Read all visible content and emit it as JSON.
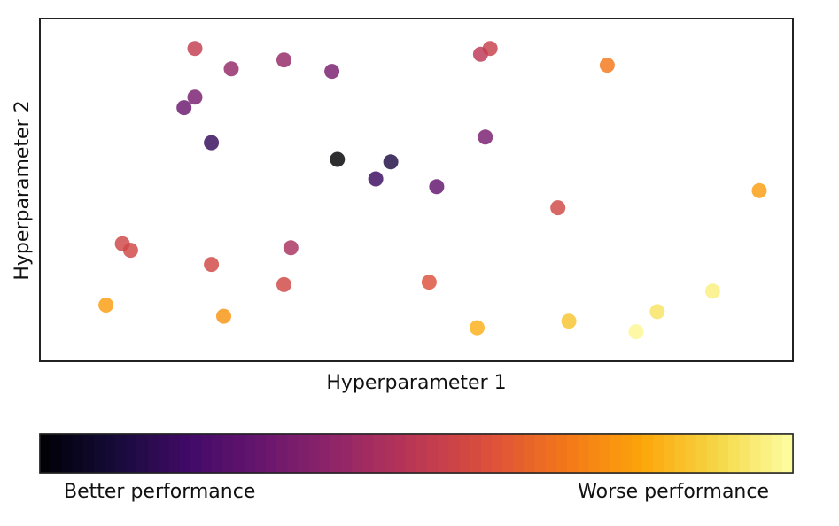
{
  "chart_data": {
    "type": "scatter",
    "title": "",
    "xlabel": "Hyperparameter 1",
    "ylabel": "Hyperparameter 2",
    "xlim": [
      0,
      100
    ],
    "ylim": [
      0,
      100
    ],
    "ticks": "none",
    "grid": false,
    "colormap": "inferno",
    "colorbar": {
      "orientation": "horizontal",
      "placement": "below",
      "low_label": "Better performance",
      "high_label": "Worse performance"
    },
    "points": [
      {
        "x": 17.6,
        "y": 95.8,
        "value": 0.52
      },
      {
        "x": 22.9,
        "y": 89.2,
        "value": 0.4
      },
      {
        "x": 30.6,
        "y": 92.1,
        "value": 0.4
      },
      {
        "x": 37.6,
        "y": 88.4,
        "value": 0.33
      },
      {
        "x": 59.3,
        "y": 93.9,
        "value": 0.5
      },
      {
        "x": 60.7,
        "y": 95.8,
        "value": 0.53
      },
      {
        "x": 77.8,
        "y": 90.4,
        "value": 0.7
      },
      {
        "x": 17.6,
        "y": 80.1,
        "value": 0.33
      },
      {
        "x": 16.0,
        "y": 76.7,
        "value": 0.3
      },
      {
        "x": 20.0,
        "y": 65.4,
        "value": 0.17
      },
      {
        "x": 60.0,
        "y": 67.2,
        "value": 0.33
      },
      {
        "x": 38.4,
        "y": 60.0,
        "value": 0.0
      },
      {
        "x": 46.2,
        "y": 59.2,
        "value": 0.12
      },
      {
        "x": 44.0,
        "y": 53.7,
        "value": 0.18
      },
      {
        "x": 52.9,
        "y": 51.2,
        "value": 0.28
      },
      {
        "x": 100.0,
        "y": 49.9,
        "value": 0.78
      },
      {
        "x": 70.6,
        "y": 44.4,
        "value": 0.56
      },
      {
        "x": 7.0,
        "y": 32.8,
        "value": 0.55
      },
      {
        "x": 8.2,
        "y": 30.7,
        "value": 0.56
      },
      {
        "x": 31.6,
        "y": 31.5,
        "value": 0.45
      },
      {
        "x": 20.0,
        "y": 26.1,
        "value": 0.56
      },
      {
        "x": 30.6,
        "y": 19.6,
        "value": 0.56
      },
      {
        "x": 51.8,
        "y": 20.4,
        "value": 0.6
      },
      {
        "x": 4.6,
        "y": 13.0,
        "value": 0.78
      },
      {
        "x": 21.8,
        "y": 9.4,
        "value": 0.76
      },
      {
        "x": 58.8,
        "y": 5.7,
        "value": 0.82
      },
      {
        "x": 72.2,
        "y": 7.8,
        "value": 0.86
      },
      {
        "x": 85.1,
        "y": 10.9,
        "value": 0.93
      },
      {
        "x": 93.2,
        "y": 17.5,
        "value": 0.96
      },
      {
        "x": 82.0,
        "y": 4.4,
        "value": 0.98
      }
    ]
  }
}
